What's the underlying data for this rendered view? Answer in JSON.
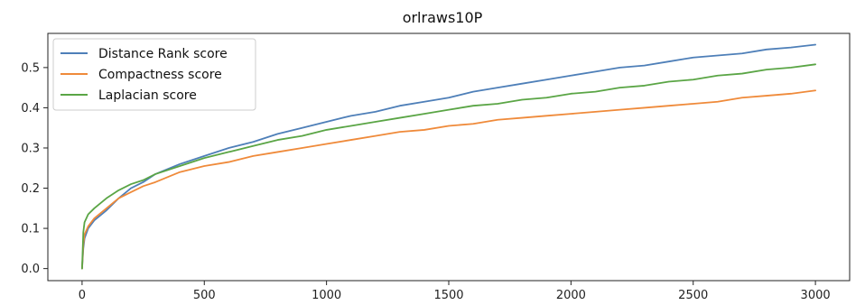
{
  "chart_data": {
    "type": "line",
    "title": "orlraws10P",
    "xlabel": "",
    "ylabel": "",
    "xlim": [
      -140,
      3140
    ],
    "ylim": [
      -0.03,
      0.585
    ],
    "xticks": [
      0,
      500,
      1000,
      1500,
      2000,
      2500,
      3000
    ],
    "xtick_labels": [
      "0",
      "500",
      "1000",
      "1500",
      "2000",
      "2500",
      "3000"
    ],
    "yticks": [
      0.0,
      0.1,
      0.2,
      0.3,
      0.4,
      0.5
    ],
    "ytick_labels": [
      "0.0",
      "0.1",
      "0.2",
      "0.3",
      "0.4",
      "0.5"
    ],
    "grid": false,
    "legend_position": "top-left",
    "series": [
      {
        "name": "Distance Rank score",
        "color": "#4e7fb8",
        "x": [
          0,
          5,
          10,
          25,
          50,
          100,
          150,
          200,
          250,
          300,
          400,
          500,
          600,
          700,
          800,
          900,
          1000,
          1100,
          1200,
          1300,
          1400,
          1500,
          1600,
          1700,
          1800,
          1900,
          2000,
          2100,
          2200,
          2300,
          2400,
          2500,
          2600,
          2700,
          2800,
          2900,
          3000
        ],
        "values": [
          0.0,
          0.05,
          0.075,
          0.1,
          0.12,
          0.145,
          0.175,
          0.2,
          0.215,
          0.235,
          0.26,
          0.28,
          0.3,
          0.315,
          0.335,
          0.35,
          0.365,
          0.38,
          0.39,
          0.405,
          0.415,
          0.425,
          0.44,
          0.45,
          0.46,
          0.47,
          0.48,
          0.49,
          0.5,
          0.505,
          0.515,
          0.525,
          0.53,
          0.535,
          0.545,
          0.55,
          0.557
        ]
      },
      {
        "name": "Compactness score",
        "color": "#ef8a3a",
        "x": [
          0,
          5,
          10,
          25,
          50,
          100,
          150,
          200,
          250,
          300,
          400,
          500,
          600,
          700,
          800,
          900,
          1000,
          1100,
          1200,
          1300,
          1400,
          1500,
          1600,
          1700,
          1800,
          1900,
          2000,
          2100,
          2200,
          2300,
          2400,
          2500,
          2600,
          2700,
          2800,
          2900,
          3000
        ],
        "values": [
          0.0,
          0.06,
          0.085,
          0.105,
          0.125,
          0.15,
          0.175,
          0.19,
          0.205,
          0.215,
          0.24,
          0.255,
          0.265,
          0.28,
          0.29,
          0.3,
          0.31,
          0.32,
          0.33,
          0.34,
          0.345,
          0.355,
          0.36,
          0.37,
          0.375,
          0.38,
          0.385,
          0.39,
          0.395,
          0.4,
          0.405,
          0.41,
          0.415,
          0.425,
          0.43,
          0.435,
          0.443
        ]
      },
      {
        "name": "Laplacian score",
        "color": "#5aa545",
        "x": [
          0,
          5,
          10,
          25,
          50,
          100,
          150,
          200,
          250,
          300,
          400,
          500,
          600,
          700,
          800,
          900,
          1000,
          1100,
          1200,
          1300,
          1400,
          1500,
          1600,
          1700,
          1800,
          1900,
          2000,
          2100,
          2200,
          2300,
          2400,
          2500,
          2600,
          2700,
          2800,
          2900,
          3000
        ],
        "values": [
          0.0,
          0.09,
          0.115,
          0.135,
          0.15,
          0.175,
          0.195,
          0.21,
          0.22,
          0.235,
          0.255,
          0.275,
          0.29,
          0.305,
          0.32,
          0.33,
          0.345,
          0.355,
          0.365,
          0.375,
          0.385,
          0.395,
          0.405,
          0.41,
          0.42,
          0.425,
          0.435,
          0.44,
          0.45,
          0.455,
          0.465,
          0.47,
          0.48,
          0.485,
          0.495,
          0.5,
          0.508
        ]
      }
    ]
  }
}
